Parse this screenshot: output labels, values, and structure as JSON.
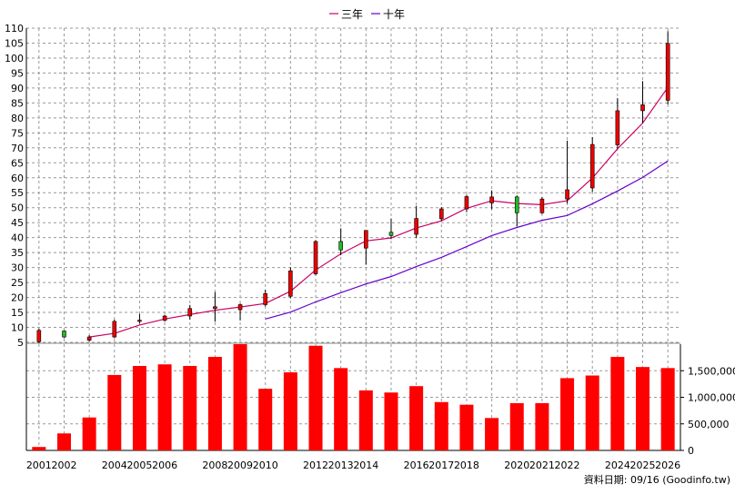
{
  "legend": {
    "ma3_label": "三年",
    "ma10_label": "十年",
    "ma3_color": "#cc0066",
    "ma10_color": "#6600cc",
    "placement": "top-center"
  },
  "colors": {
    "up": "#ee0000",
    "down": "#22bb22",
    "wick": "#000000",
    "volume": "#ff0000",
    "grid": "#999999"
  },
  "source_note": "資料日期: 09/16  (Goodinfo.tw)",
  "chart_data": [
    {
      "type": "candlestick",
      "grid": true,
      "ylim": [
        5,
        110
      ],
      "yticks": [
        5,
        10,
        15,
        20,
        25,
        30,
        35,
        40,
        45,
        50,
        55,
        60,
        65,
        70,
        75,
        80,
        85,
        90,
        95,
        100,
        105,
        110
      ],
      "candles": [
        {
          "year": "2001",
          "open": 5.2,
          "high": 9.6,
          "low": 4.8,
          "close": 9.0
        },
        {
          "year": "2002",
          "open": 8.8,
          "high": 9.0,
          "low": 6.4,
          "close": 6.8
        },
        {
          "year": "2003",
          "open": 5.7,
          "high": 7.4,
          "low": 5.2,
          "close": 6.8
        },
        {
          "year": "2004",
          "open": 6.8,
          "high": 12.6,
          "low": 6.4,
          "close": 12.0
        },
        {
          "year": "2005",
          "open": 12.0,
          "high": 14.5,
          "low": 11.3,
          "close": 12.4
        },
        {
          "year": "2006",
          "open": 12.4,
          "high": 14.2,
          "low": 11.9,
          "close": 13.8
        },
        {
          "year": "2007",
          "open": 13.8,
          "high": 17.5,
          "low": 12.6,
          "close": 16.3
        },
        {
          "year": "2008",
          "open": 16.3,
          "high": 21.8,
          "low": 11.9,
          "close": 16.9
        },
        {
          "year": "2009",
          "open": 15.9,
          "high": 18.0,
          "low": 12.3,
          "close": 17.6
        },
        {
          "year": "2010",
          "open": 17.6,
          "high": 22.6,
          "low": 17.0,
          "close": 21.3
        },
        {
          "year": "2011",
          "open": 20.4,
          "high": 30.1,
          "low": 19.7,
          "close": 28.9
        },
        {
          "year": "2012",
          "open": 27.9,
          "high": 39.2,
          "low": 27.4,
          "close": 38.7
        },
        {
          "year": "2013",
          "open": 38.7,
          "high": 43.1,
          "low": 34.1,
          "close": 35.9
        },
        {
          "year": "2014",
          "open": 36.5,
          "high": 42.4,
          "low": 31.0,
          "close": 42.4
        },
        {
          "year": "2015",
          "open": 41.8,
          "high": 46.4,
          "low": 39.5,
          "close": 40.7
        },
        {
          "year": "2016",
          "open": 41.1,
          "high": 50.6,
          "low": 39.8,
          "close": 46.4
        },
        {
          "year": "2017",
          "open": 46.3,
          "high": 50.2,
          "low": 45.6,
          "close": 49.6
        },
        {
          "year": "2018",
          "open": 49.6,
          "high": 54.3,
          "low": 48.5,
          "close": 53.7
        },
        {
          "year": "2019",
          "open": 51.6,
          "high": 55.8,
          "low": 49.5,
          "close": 53.6
        },
        {
          "year": "2020",
          "open": 53.6,
          "high": 54.1,
          "low": 43.8,
          "close": 48.3
        },
        {
          "year": "2021",
          "open": 48.3,
          "high": 53.6,
          "low": 47.9,
          "close": 52.9
        },
        {
          "year": "2022",
          "open": 52.9,
          "high": 72.4,
          "low": 51.4,
          "close": 56.0
        },
        {
          "year": "2023",
          "open": 56.6,
          "high": 73.6,
          "low": 55.3,
          "close": 71.1
        },
        {
          "year": "2024",
          "open": 71.0,
          "high": 86.6,
          "low": 69.8,
          "close": 82.4
        },
        {
          "year": "2025",
          "open": 82.4,
          "high": 92.3,
          "low": 78.2,
          "close": 84.4
        },
        {
          "year": "2026",
          "open": 85.9,
          "high": 109.0,
          "low": 84.5,
          "close": 104.9
        }
      ],
      "series": [
        {
          "name": "三年",
          "x": [
            "2003",
            "2004",
            "2005",
            "2006",
            "2007",
            "2008",
            "2009",
            "2010",
            "2011",
            "2012",
            "2013",
            "2014",
            "2015",
            "2016",
            "2017",
            "2018",
            "2019",
            "2020",
            "2021",
            "2022",
            "2023",
            "2024",
            "2025",
            "2026"
          ],
          "values": [
            6.8,
            8.0,
            10.8,
            12.8,
            14.3,
            15.7,
            16.8,
            18.0,
            22.1,
            29.2,
            34.6,
            38.9,
            39.9,
            43.2,
            45.6,
            49.8,
            52.3,
            51.4,
            51.0,
            52.3,
            59.9,
            69.7,
            78.3,
            90.2
          ]
        },
        {
          "name": "十年",
          "x": [
            "2010",
            "2011",
            "2012",
            "2013",
            "2014",
            "2015",
            "2016",
            "2017",
            "2018",
            "2019",
            "2020",
            "2021",
            "2022",
            "2023",
            "2024",
            "2025",
            "2026"
          ],
          "values": [
            12.8,
            15.1,
            18.5,
            21.6,
            24.5,
            27.0,
            30.3,
            33.4,
            37.0,
            40.7,
            43.4,
            45.8,
            47.4,
            51.3,
            55.6,
            60.1,
            65.6
          ]
        }
      ]
    },
    {
      "type": "bar",
      "grid": true,
      "ylim": [
        0,
        2000000
      ],
      "yticks": [
        0,
        500000,
        1000000,
        1500000
      ],
      "ytick_labels": [
        "0",
        "500,000",
        "1,000,000",
        "1,500,000"
      ],
      "categories": [
        "2001",
        "2002",
        "2003",
        "2004",
        "2005",
        "2006",
        "2007",
        "2008",
        "2009",
        "2010",
        "2011",
        "2012",
        "2013",
        "2014",
        "2015",
        "2016",
        "2017",
        "2018",
        "2019",
        "2020",
        "2021",
        "2022",
        "2023",
        "2024",
        "2025",
        "2026"
      ],
      "xtick_labels": [
        "2001",
        "2002",
        "",
        "2004",
        "2005",
        "2006",
        "",
        "2008",
        "2009",
        "2010",
        "",
        "2012",
        "2013",
        "2014",
        "",
        "2016",
        "2017",
        "2018",
        "",
        "2020",
        "2021",
        "2022",
        "",
        "2024",
        "2025",
        "2026"
      ],
      "values": [
        65000,
        320000,
        620000,
        1420000,
        1590000,
        1620000,
        1590000,
        1760000,
        2000000,
        1160000,
        1470000,
        1970000,
        1550000,
        1130000,
        1090000,
        1210000,
        910000,
        860000,
        610000,
        890000,
        890000,
        1360000,
        1410000,
        1760000,
        1570000,
        1550000
      ]
    }
  ]
}
